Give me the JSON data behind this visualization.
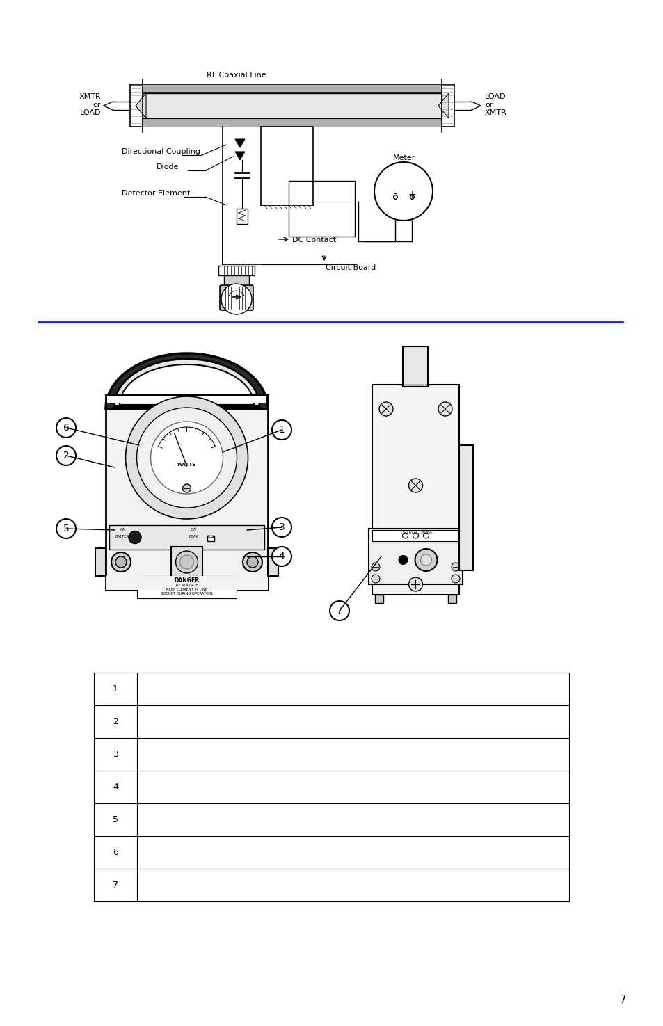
{
  "page_number": "7",
  "bg_color": "#ffffff",
  "blue_line_color": "#1a1aff",
  "fig2_title": "RF Coaxial Line",
  "fig2_labels": {
    "xmtr_load_left": "XMTR\nor\nLOAD",
    "load_xmtr_right": "LOAD\nor\nXMTR",
    "directional_coupling": "Directional Coupling",
    "diode": "Diode",
    "detector_element": "Detector Element",
    "dc_contact": "DC Contact",
    "circuit_board": "Circuit Board",
    "meter": "Meter"
  },
  "fig3_numbers": [
    "1",
    "2",
    "3",
    "4",
    "5",
    "6",
    "7"
  ],
  "table_rows": 7
}
